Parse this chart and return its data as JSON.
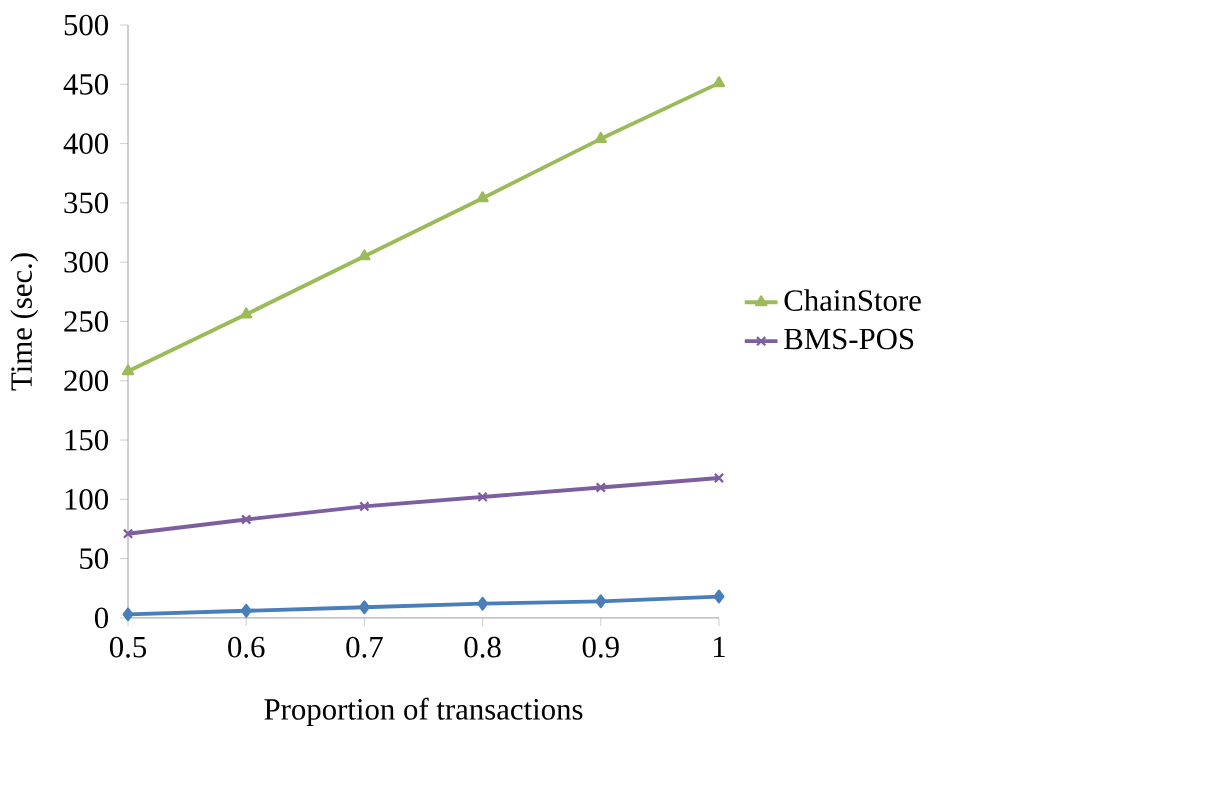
{
  "chart_data": {
    "type": "line",
    "xlabel": "Proportion of transactions",
    "ylabel": "Time (sec.)",
    "categories": [
      "0.5",
      "0.6",
      "0.7",
      "0.8",
      "0.9",
      "1"
    ],
    "series": [
      {
        "color": "#4a7ebb",
        "marker": "diamond",
        "values": [
          3,
          6,
          9,
          12,
          14,
          18
        ]
      },
      {
        "name": "ChainStore",
        "color": "#9bbb59",
        "marker": "triangle",
        "values": [
          208,
          256,
          305,
          354,
          404,
          451
        ]
      },
      {
        "name": "BMS-POS",
        "color": "#7d5fa0",
        "marker": "cross",
        "values": [
          71,
          83,
          94,
          102,
          110,
          118
        ]
      }
    ],
    "ylim": [
      0,
      500
    ],
    "yticks": [
      0,
      50,
      100,
      150,
      200,
      250,
      300,
      350,
      400,
      450,
      500
    ],
    "grid": false,
    "legend": "right"
  }
}
